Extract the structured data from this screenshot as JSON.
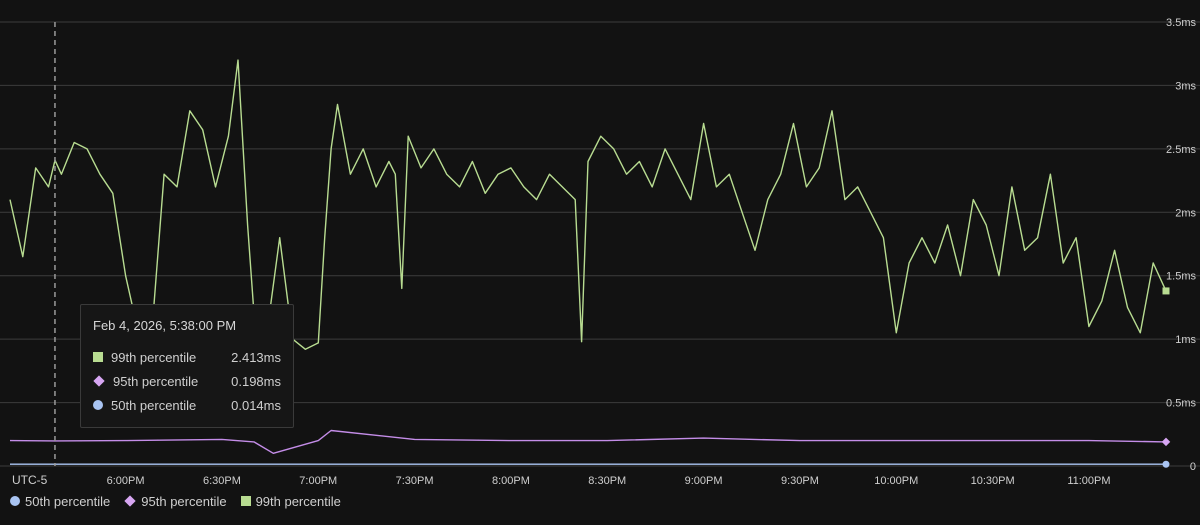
{
  "colors": {
    "background": "#121212",
    "grid": "#3c3c3c",
    "p99": "#b8dc91",
    "p95": "#c48de8",
    "p50": "#a9c4f2"
  },
  "tooltip": {
    "date": "Feb 4, 2026, 5:38:00 PM",
    "rows": [
      {
        "icon": "square-icon",
        "label": "99th percentile",
        "value": "2.413ms"
      },
      {
        "icon": "diamond-icon",
        "label": "95th percentile",
        "value": "0.198ms"
      },
      {
        "icon": "circle-icon",
        "label": "50th percentile",
        "value": "0.014ms"
      }
    ]
  },
  "legend": [
    {
      "icon": "circle-icon",
      "label": "50th percentile"
    },
    {
      "icon": "diamond-icon",
      "label": "95th percentile"
    },
    {
      "icon": "square-icon",
      "label": "99th percentile"
    }
  ],
  "timezone_label": "UTC-5",
  "chart_data": {
    "type": "line",
    "xlim": [
      "5:24 PM",
      "11:24 PM"
    ],
    "x_ticks": [
      "6:00 PM",
      "6:30 PM",
      "7:00 PM",
      "7:30 PM",
      "8:00 PM",
      "8:30 PM",
      "9:00 PM",
      "9:30 PM",
      "10:00 PM",
      "10:30 PM",
      "11:00 PM"
    ],
    "y_ticks": [
      "0",
      "0.5ms",
      "1ms",
      "1.5ms",
      "2ms",
      "2.5ms",
      "3ms",
      "3.5ms"
    ],
    "ylim": [
      0,
      3.5
    ],
    "y_unit": "ms",
    "crosshair_time": "5:38 PM",
    "series": [
      {
        "name": "99th percentile",
        "x": [
          "5:24 PM",
          "5:28 PM",
          "5:32 PM",
          "5:36 PM",
          "5:38 PM",
          "5:40 PM",
          "5:44 PM",
          "5:48 PM",
          "5:52 PM",
          "5:56 PM",
          "6:00 PM",
          "6:04 PM",
          "6:08 PM",
          "6:12 PM",
          "6:16 PM",
          "6:20 PM",
          "6:24 PM",
          "6:28 PM",
          "6:32 PM",
          "6:35 PM",
          "6:38 PM",
          "6:40 PM",
          "6:44 PM",
          "6:48 PM",
          "6:52 PM",
          "6:56 PM",
          "7:00 PM",
          "7:02 PM",
          "7:04 PM",
          "7:06 PM",
          "7:10 PM",
          "7:14 PM",
          "7:18 PM",
          "7:22 PM",
          "7:24 PM",
          "7:26 PM",
          "7:28 PM",
          "7:32 PM",
          "7:36 PM",
          "7:40 PM",
          "7:44 PM",
          "7:48 PM",
          "7:52 PM",
          "7:56 PM",
          "8:00 PM",
          "8:04 PM",
          "8:08 PM",
          "8:12 PM",
          "8:16 PM",
          "8:20 PM",
          "8:22 PM",
          "8:24 PM",
          "8:28 PM",
          "8:32 PM",
          "8:36 PM",
          "8:40 PM",
          "8:44 PM",
          "8:48 PM",
          "8:52 PM",
          "8:56 PM",
          "9:00 PM",
          "9:04 PM",
          "9:08 PM",
          "9:12 PM",
          "9:16 PM",
          "9:20 PM",
          "9:24 PM",
          "9:28 PM",
          "9:32 PM",
          "9:36 PM",
          "9:40 PM",
          "9:44 PM",
          "9:48 PM",
          "9:52 PM",
          "9:56 PM",
          "10:00 PM",
          "10:04 PM",
          "10:08 PM",
          "10:12 PM",
          "10:16 PM",
          "10:20 PM",
          "10:24 PM",
          "10:28 PM",
          "10:32 PM",
          "10:36 PM",
          "10:40 PM",
          "10:44 PM",
          "10:48 PM",
          "10:52 PM",
          "10:56 PM",
          "11:00 PM",
          "11:04 PM",
          "11:08 PM",
          "11:12 PM",
          "11:16 PM",
          "11:20 PM",
          "11:24 PM"
        ],
        "values": [
          2.1,
          1.65,
          2.35,
          2.2,
          2.41,
          2.3,
          2.55,
          2.5,
          2.3,
          2.15,
          1.5,
          1.05,
          1.0,
          2.3,
          2.2,
          2.8,
          2.65,
          2.2,
          2.6,
          3.2,
          1.9,
          1.2,
          1.05,
          1.8,
          1.0,
          0.92,
          0.97,
          1.8,
          2.5,
          2.85,
          2.3,
          2.5,
          2.2,
          2.4,
          2.3,
          1.4,
          2.6,
          2.35,
          2.5,
          2.3,
          2.2,
          2.4,
          2.15,
          2.3,
          2.35,
          2.2,
          2.1,
          2.3,
          2.2,
          2.1,
          0.98,
          2.4,
          2.6,
          2.5,
          2.3,
          2.4,
          2.2,
          2.5,
          2.3,
          2.1,
          2.7,
          2.2,
          2.3,
          2.0,
          1.7,
          2.1,
          2.3,
          2.7,
          2.2,
          2.35,
          2.8,
          2.1,
          2.2,
          2.0,
          1.8,
          1.05,
          1.6,
          1.8,
          1.6,
          1.9,
          1.5,
          2.1,
          1.9,
          1.5,
          2.2,
          1.7,
          1.8,
          2.3,
          1.6,
          1.8,
          1.1,
          1.3,
          1.7,
          1.25,
          1.05,
          1.6,
          1.38
        ]
      },
      {
        "name": "95th percentile",
        "x": [
          "5:24 PM",
          "5:38 PM",
          "6:00 PM",
          "6:30 PM",
          "6:40 PM",
          "6:46 PM",
          "7:00 PM",
          "7:04 PM",
          "7:30 PM",
          "8:00 PM",
          "8:30 PM",
          "9:00 PM",
          "9:30 PM",
          "10:00 PM",
          "10:30 PM",
          "11:00 PM",
          "11:24 PM"
        ],
        "values": [
          0.2,
          0.198,
          0.2,
          0.21,
          0.19,
          0.1,
          0.2,
          0.28,
          0.21,
          0.2,
          0.2,
          0.22,
          0.2,
          0.2,
          0.2,
          0.2,
          0.19
        ]
      },
      {
        "name": "50th percentile",
        "x": [
          "5:24 PM",
          "5:38 PM",
          "11:24 PM"
        ],
        "values": [
          0.014,
          0.014,
          0.014
        ]
      }
    ]
  }
}
